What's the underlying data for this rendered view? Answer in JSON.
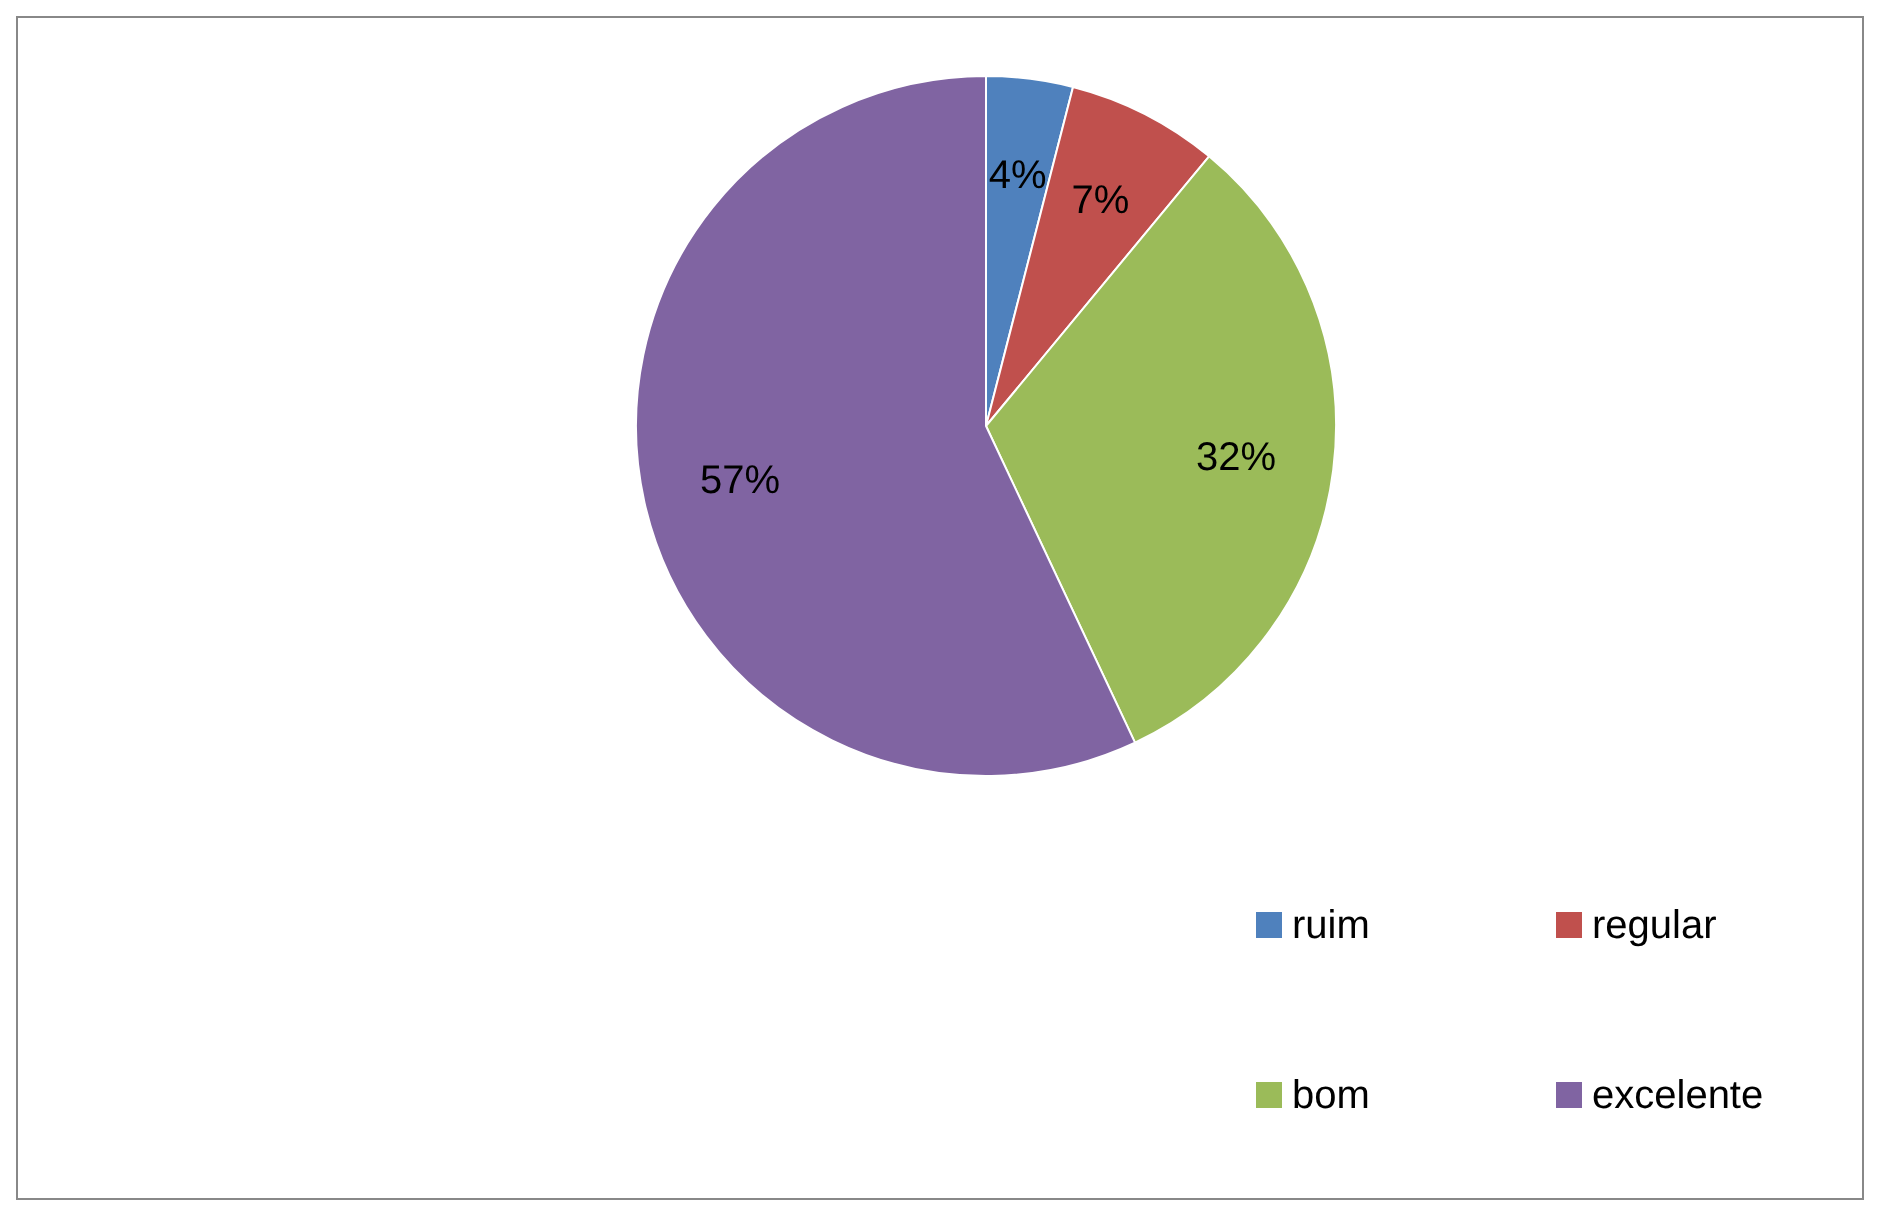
{
  "chart_data": {
    "type": "pie",
    "categories": [
      "ruim",
      "regular",
      "bom",
      "excelente"
    ],
    "values": [
      4,
      7,
      32,
      57
    ],
    "colors": [
      "#4f81bd",
      "#c0504d",
      "#9bbb59",
      "#8064a2"
    ],
    "value_labels": [
      "4%",
      "7%",
      "32%",
      "57%"
    ],
    "legend": "bottom right"
  }
}
